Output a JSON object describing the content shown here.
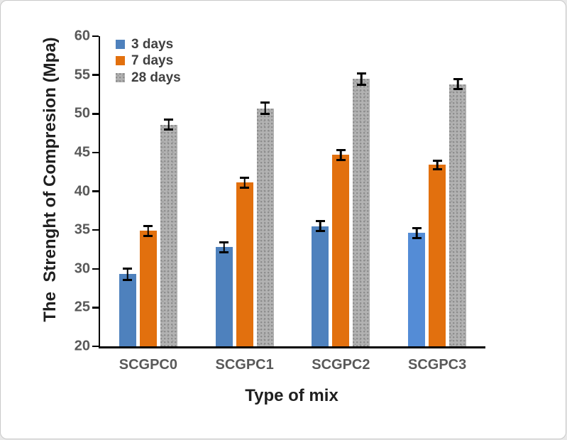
{
  "frame": {
    "background": "#ffffff",
    "border_color": "#c9c9c9"
  },
  "chart_data": {
    "type": "bar",
    "title": "",
    "xlabel": "Type of mix",
    "ylabel": "The  Strenght of Compresion (Mpa)",
    "categories": [
      "SCGPC0",
      "SCGPC1",
      "SCGPC2",
      "SCGPC3"
    ],
    "series": [
      {
        "name": "3 days",
        "color": "#4e81bd",
        "bar_colors": [
          "#4e81bd",
          "#4e81bd",
          "#4e81bd",
          "#548cd6"
        ],
        "values": [
          29.3,
          32.8,
          35.5,
          34.6
        ],
        "errors": [
          0.6,
          0.5,
          0.5,
          0.5
        ]
      },
      {
        "name": "7 days",
        "color": "#e2700e",
        "values": [
          34.9,
          41.1,
          44.7,
          43.4
        ],
        "errors": [
          0.5,
          0.5,
          0.5,
          0.4
        ]
      },
      {
        "name": "28 days",
        "color": "#b2b2b2",
        "pattern": "speckled",
        "dot_color": "#8a8a8a",
        "values": [
          48.6,
          50.7,
          54.5,
          53.8
        ],
        "errors": [
          0.5,
          0.6,
          0.6,
          0.5
        ]
      }
    ],
    "ylim": [
      20,
      60
    ],
    "ytick_step": 5,
    "grid": false,
    "error_bars": true,
    "legend_position": "top-left-inside",
    "axis_color": "#000000",
    "tick_label_color": "#595959",
    "axis_title_color": "#1f1f1f",
    "legend_text_color": "#3f3f3f"
  }
}
